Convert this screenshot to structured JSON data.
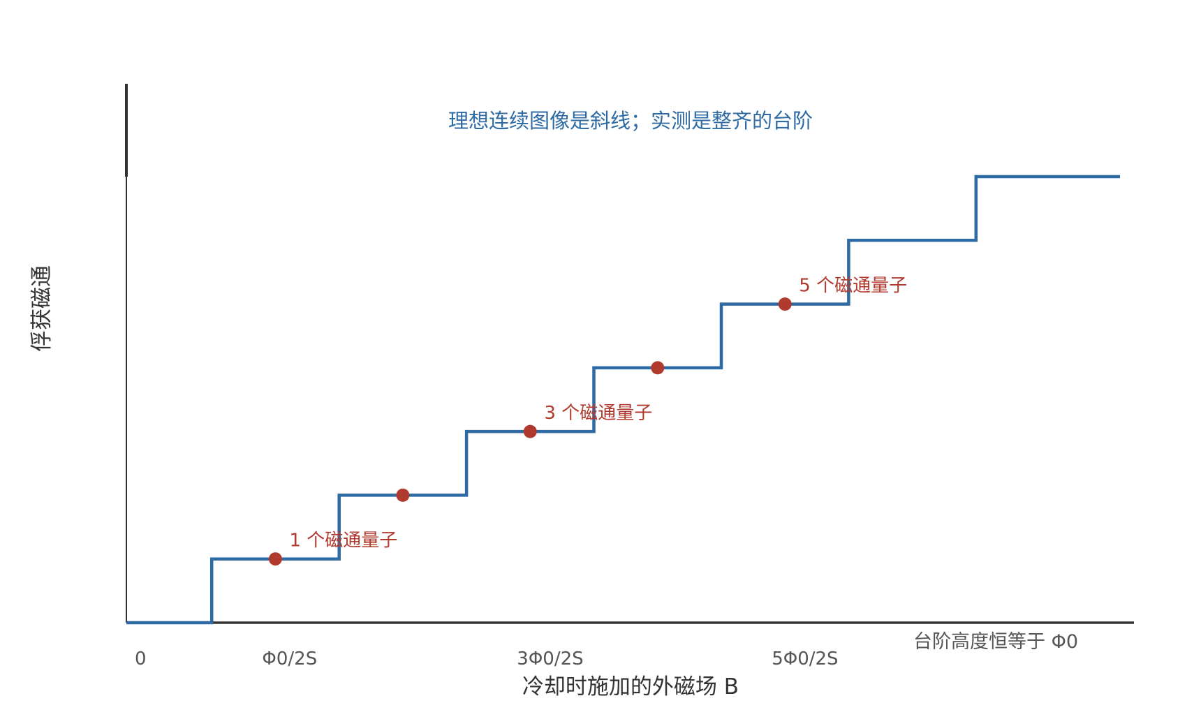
{
  "chart_data": {
    "type": "line",
    "line_shape": "step",
    "title": "理想连续图像是斜线；实测是整齐的台阶",
    "xlabel": "冷却时施加的外磁场 B",
    "ylabel": "俘获磁通",
    "x_ticks": [
      {
        "value": 0,
        "label": "0"
      },
      {
        "value": 1,
        "label": "Φ0/2S"
      },
      {
        "value": 3,
        "label": "3Φ0/2S"
      },
      {
        "value": 5,
        "label": "5Φ0/2S"
      }
    ],
    "xlim": [
      0,
      7.8
    ],
    "ylim": [
      0,
      7
    ],
    "series": [
      {
        "values": [
          {
            "x": 0,
            "y": 0
          },
          {
            "x": 0.67,
            "y": 0
          },
          {
            "x": 0.67,
            "y": 1
          },
          {
            "x": 1.67,
            "y": 1
          },
          {
            "x": 1.67,
            "y": 2
          },
          {
            "x": 2.67,
            "y": 2
          },
          {
            "x": 2.67,
            "y": 3
          },
          {
            "x": 3.67,
            "y": 3
          },
          {
            "x": 3.67,
            "y": 4
          },
          {
            "x": 4.67,
            "y": 4
          },
          {
            "x": 4.67,
            "y": 5
          },
          {
            "x": 5.67,
            "y": 5
          },
          {
            "x": 5.67,
            "y": 6
          },
          {
            "x": 6.67,
            "y": 6
          },
          {
            "x": 6.67,
            "y": 7
          },
          {
            "x": 7.8,
            "y": 7
          }
        ]
      }
    ],
    "points": [
      {
        "x": 1.17,
        "y": 1
      },
      {
        "x": 2.17,
        "y": 2
      },
      {
        "x": 3.17,
        "y": 3
      },
      {
        "x": 4.17,
        "y": 4
      },
      {
        "x": 5.17,
        "y": 5
      }
    ],
    "annotations": [
      {
        "text": "1 个磁通量子",
        "x": 1.28,
        "y": 1.2
      },
      {
        "text": "3 个磁通量子",
        "x": 3.28,
        "y": 3.2
      },
      {
        "text": "5 个磁通量子",
        "x": 5.28,
        "y": 5.2
      }
    ],
    "note": "台阶高度恒等于 Φ0",
    "colors": {
      "line": "#2e6aa3",
      "point": "#b03a2e",
      "annotation": "#b03a2e",
      "title": "#2e6aa3",
      "axis": "#333333"
    }
  }
}
